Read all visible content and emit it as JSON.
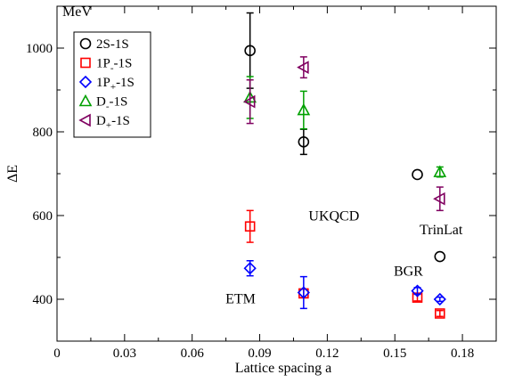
{
  "chart_data": {
    "type": "scatter",
    "title": "",
    "xlabel": "Lattice spacing a",
    "ylabel": "ΔE",
    "yunit": "MeV",
    "xlim": [
      0,
      0.195
    ],
    "ylim": [
      300,
      1100
    ],
    "xticks": [
      0,
      0.03,
      0.06,
      0.09,
      0.12,
      0.15,
      0.18
    ],
    "xtick_labels": [
      "0",
      "0.03",
      "0.06",
      "0.09",
      "0.12",
      "0.15",
      "0.18"
    ],
    "yticks": [
      400,
      600,
      800,
      1000
    ],
    "ytick_labels": [
      "400",
      "600",
      "800",
      "1000"
    ],
    "grid": false,
    "legend_position": "top-left",
    "series": [
      {
        "name": "2S-1S",
        "label_main": "2S-1S",
        "label_sub": "",
        "marker": "circle",
        "color": "#000000",
        "x": [
          0.0857,
          0.1095,
          0.16,
          0.17
        ],
        "y": [
          994,
          776,
          698,
          502
        ],
        "err": [
          90,
          30,
          0,
          0
        ]
      },
      {
        "name": "1P_-1S",
        "label_main": "1P",
        "label_sub": "-",
        "label_tail": "-1S",
        "marker": "square",
        "color": "#ff0000",
        "x": [
          0.0857,
          0.1095,
          0.16,
          0.17
        ],
        "y": [
          574,
          414,
          404,
          366
        ],
        "err": [
          38,
          10,
          8,
          7
        ]
      },
      {
        "name": "1P_+-1S",
        "label_main": "1P",
        "label_sub": "+",
        "label_tail": "-1S",
        "marker": "diamond",
        "color": "#0000ff",
        "x": [
          0.0857,
          0.1095,
          0.16,
          0.17
        ],
        "y": [
          474,
          416,
          420,
          400
        ],
        "err": [
          18,
          38,
          8,
          5
        ]
      },
      {
        "name": "D_-1S",
        "label_main": "D",
        "label_sub": "-",
        "label_tail": "-1S",
        "marker": "triangle-up",
        "color": "#00a000",
        "x": [
          0.0857,
          0.1095,
          0.17
        ],
        "y": [
          882,
          852,
          704
        ],
        "err": [
          50,
          45,
          12
        ]
      },
      {
        "name": "D_+-1S",
        "label_main": "D",
        "label_sub": "+",
        "label_tail": "-1S",
        "marker": "triangle-left",
        "color": "#800060",
        "x": [
          0.0857,
          0.1095,
          0.17
        ],
        "y": [
          872,
          954,
          640
        ],
        "err": [
          52,
          25,
          28
        ]
      }
    ],
    "annotations": [
      {
        "text": "UKQCD",
        "x": 0.1117,
        "y": 588
      },
      {
        "text": "ETM",
        "x": 0.0748,
        "y": 390
      },
      {
        "text": "BGR",
        "x": 0.1495,
        "y": 456
      },
      {
        "text": "TrinLat",
        "x": 0.161,
        "y": 555
      }
    ]
  }
}
